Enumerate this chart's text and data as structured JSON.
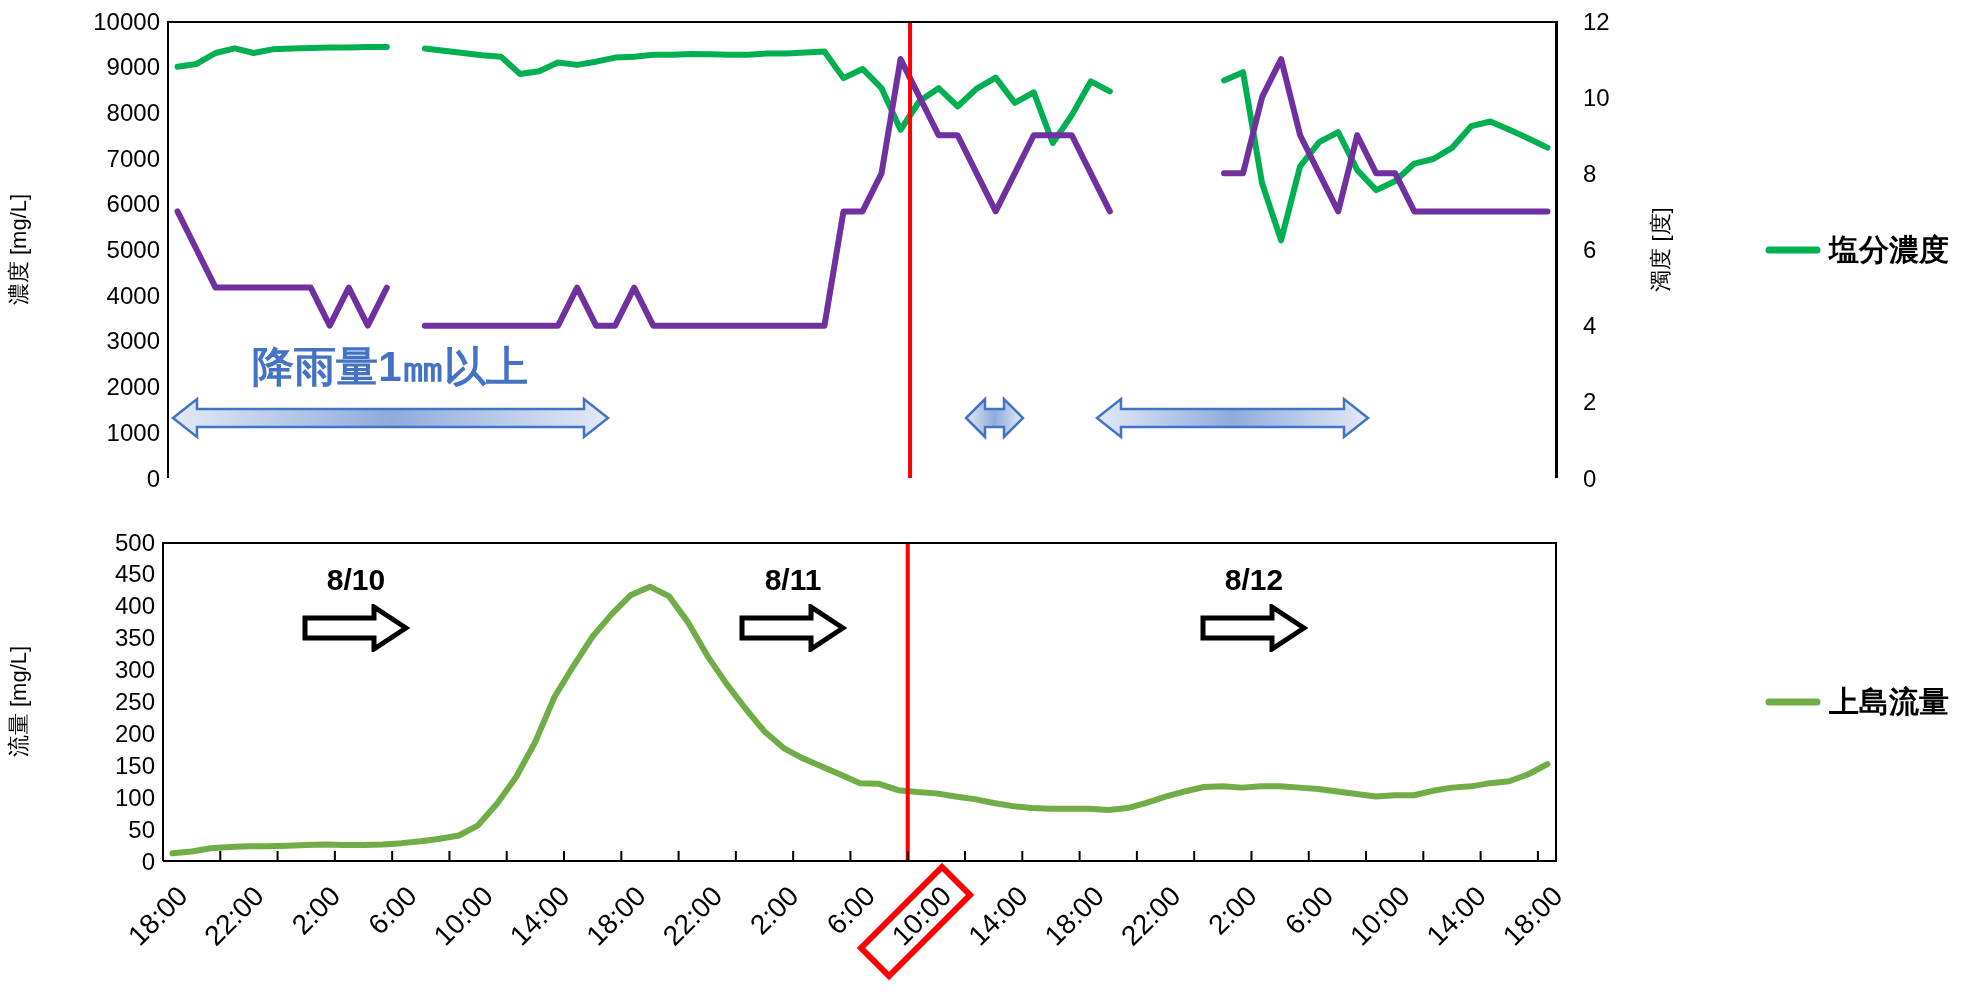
{
  "chart_data": [
    {
      "type": "line",
      "xlim": [
        "--08-09T17:30",
        "--08-12T18:30"
      ],
      "x": [
        "--08-09T18:00",
        "--08-09T19:00",
        "--08-09T20:00",
        "--08-09T21:00",
        "--08-09T22:00",
        "--08-09T23:00",
        "--08-10T00:00",
        "--08-10T01:00",
        "--08-10T02:00",
        "--08-10T03:00",
        "--08-10T04:00",
        "--08-10T05:00",
        "--08-10T06:00",
        "--08-10T07:00",
        "--08-10T08:00",
        "--08-10T09:00",
        "--08-10T10:00",
        "--08-10T11:00",
        "--08-10T12:00",
        "--08-10T13:00",
        "--08-10T14:00",
        "--08-10T15:00",
        "--08-10T16:00",
        "--08-10T17:00",
        "--08-10T18:00",
        "--08-10T19:00",
        "--08-10T20:00",
        "--08-10T21:00",
        "--08-10T22:00",
        "--08-10T23:00",
        "--08-11T00:00",
        "--08-11T01:00",
        "--08-11T02:00",
        "--08-11T03:00",
        "--08-11T04:00",
        "--08-11T05:00",
        "--08-11T06:00",
        "--08-11T07:00",
        "--08-11T08:00",
        "--08-11T09:00",
        "--08-11T10:00",
        "--08-11T11:00",
        "--08-11T12:00",
        "--08-11T13:00",
        "--08-11T14:00",
        "--08-11T15:00",
        "--08-11T16:00",
        "--08-11T17:00",
        "--08-11T18:00",
        "--08-11T19:00",
        "--08-11T20:00",
        "--08-11T21:00",
        "--08-11T22:00",
        "--08-11T23:00",
        "--08-12T00:00",
        "--08-12T01:00",
        "--08-12T02:00",
        "--08-12T03:00",
        "--08-12T04:00",
        "--08-12T05:00",
        "--08-12T06:00",
        "--08-12T07:00",
        "--08-12T08:00",
        "--08-12T09:00",
        "--08-12T10:00",
        "--08-12T11:00",
        "--08-12T12:00",
        "--08-12T13:00",
        "--08-12T14:00",
        "--08-12T15:00",
        "--08-12T16:00",
        "--08-12T17:00",
        "--08-12T18:00"
      ],
      "ylabel": "濃度 [mg/L]",
      "y2label": "濁度 [度]",
      "ylim": [
        0,
        10000
      ],
      "yticks": [
        0,
        1000,
        2000,
        3000,
        4000,
        5000,
        6000,
        7000,
        8000,
        9000,
        10000
      ],
      "y2lim": [
        0,
        12
      ],
      "y2ticks": [
        0,
        2,
        4,
        6,
        8,
        10,
        12
      ],
      "tick_labels": "y",
      "legend": "right",
      "marker": "none",
      "line_style": "solid",
      "series": [
        {
          "name": "塩分濃度",
          "color": "#00b050",
          "values": [
            9000,
            9060,
            9300,
            9400,
            9300,
            9380,
            9400,
            9410,
            9420,
            9420,
            9430,
            9430,
            null,
            9400,
            9350,
            9300,
            9250,
            9220,
            8840,
            8900,
            9090,
            9040,
            9110,
            9200,
            9220,
            9260,
            9260,
            9280,
            9270,
            9260,
            9260,
            9290,
            9290,
            9310,
            9330,
            8750,
            8950,
            8530,
            7620,
            8250,
            8530,
            8130,
            8520,
            8760,
            8210,
            8440,
            7330,
            7940,
            8680,
            8460,
            null,
            null,
            null,
            null,
            null,
            8700,
            8880,
            6450,
            5200,
            6820,
            7350,
            7570,
            6740,
            6300,
            6500,
            6880,
            6980,
            7230,
            7700,
            7800,
            7620,
            7430,
            7230
          ]
        },
        {
          "color": "#7030a0",
          "axis": "y2",
          "values": [
            7,
            6,
            5,
            5,
            5,
            5,
            5,
            5,
            4,
            5,
            4,
            5,
            null,
            4,
            4,
            4,
            4,
            4,
            4,
            4,
            4,
            5,
            4,
            4,
            5,
            4,
            4,
            4,
            4,
            4,
            4,
            4,
            4,
            4,
            4,
            7,
            7,
            8,
            11,
            10,
            9,
            9,
            8,
            7,
            8,
            9,
            9,
            9,
            8,
            7,
            null,
            null,
            null,
            null,
            null,
            8,
            8,
            10,
            11,
            9,
            8,
            7,
            9,
            8,
            8,
            7,
            7,
            7,
            7,
            7,
            7,
            7,
            7
          ]
        }
      ],
      "ref_lines": [
        {
          "axis": "x",
          "value": "--08-11T08:30",
          "color": "#ff0000"
        }
      ],
      "annotations": [
        "降雨量1㎜以上"
      ]
    },
    {
      "type": "line",
      "xlim": [
        "--08-09T17:30",
        "--08-12T18:30"
      ],
      "x": [
        "--08-09T18:00",
        "--08-09T19:00",
        "--08-09T20:00",
        "--08-09T21:00",
        "--08-09T22:00",
        "--08-09T23:00",
        "--08-10T00:00",
        "--08-10T01:00",
        "--08-10T02:00",
        "--08-10T03:00",
        "--08-10T04:00",
        "--08-10T05:00",
        "--08-10T06:00",
        "--08-10T07:00",
        "--08-10T08:00",
        "--08-10T09:00",
        "--08-10T10:00",
        "--08-10T11:00",
        "--08-10T12:00",
        "--08-10T13:00",
        "--08-10T14:00",
        "--08-10T15:00",
        "--08-10T16:00",
        "--08-10T17:00",
        "--08-10T18:00",
        "--08-10T19:00",
        "--08-10T20:00",
        "--08-10T21:00",
        "--08-10T22:00",
        "--08-10T23:00",
        "--08-11T00:00",
        "--08-11T01:00",
        "--08-11T02:00",
        "--08-11T03:00",
        "--08-11T04:00",
        "--08-11T05:00",
        "--08-11T06:00",
        "--08-11T07:00",
        "--08-11T08:00",
        "--08-11T09:00",
        "--08-11T10:00",
        "--08-11T11:00",
        "--08-11T12:00",
        "--08-11T13:00",
        "--08-11T14:00",
        "--08-11T15:00",
        "--08-11T16:00",
        "--08-11T17:00",
        "--08-11T18:00",
        "--08-11T19:00",
        "--08-11T20:00",
        "--08-11T21:00",
        "--08-11T22:00",
        "--08-11T23:00",
        "--08-12T00:00",
        "--08-12T01:00",
        "--08-12T02:00",
        "--08-12T03:00",
        "--08-12T04:00",
        "--08-12T05:00",
        "--08-12T06:00",
        "--08-12T07:00",
        "--08-12T08:00",
        "--08-12T09:00",
        "--08-12T10:00",
        "--08-12T11:00",
        "--08-12T12:00",
        "--08-12T13:00",
        "--08-12T14:00",
        "--08-12T15:00",
        "--08-12T16:00",
        "--08-12T17:00",
        "--08-12T18:00"
      ],
      "xticks": [
        {
          "value": "--08-09T18:00",
          "label": "18:00"
        },
        {
          "value": "--08-09T22:00",
          "label": "22:00"
        },
        {
          "value": "--08-10T02:00",
          "label": "2:00"
        },
        {
          "value": "--08-10T06:00",
          "label": "6:00"
        },
        {
          "value": "--08-10T10:00",
          "label": "10:00"
        },
        {
          "value": "--08-10T14:00",
          "label": "14:00"
        },
        {
          "value": "--08-10T18:00",
          "label": "18:00"
        },
        {
          "value": "--08-10T22:00",
          "label": "22:00"
        },
        {
          "value": "--08-11T02:00",
          "label": "2:00"
        },
        {
          "value": "--08-11T06:00",
          "label": "6:00"
        },
        {
          "value": "--08-11T10:00",
          "label": "10:00"
        },
        {
          "value": "--08-11T14:00",
          "label": "14:00"
        },
        {
          "value": "--08-11T18:00",
          "label": "18:00"
        },
        {
          "value": "--08-11T22:00",
          "label": "22:00"
        },
        {
          "value": "--08-12T02:00",
          "label": "2:00"
        },
        {
          "value": "--08-12T06:00",
          "label": "6:00"
        },
        {
          "value": "--08-12T10:00",
          "label": "10:00"
        },
        {
          "value": "--08-12T14:00",
          "label": "14:00"
        },
        {
          "value": "--08-12T18:00",
          "label": "18:00"
        },
        {
          "value": "--08-09T20:30",
          "label": null
        },
        {
          "value": "--08-09T23:30",
          "label": null
        },
        {
          "value": "--08-10T02:30",
          "label": null
        },
        {
          "value": "--08-10T05:30",
          "label": null
        },
        {
          "value": "--08-10T08:30",
          "label": null
        },
        {
          "value": "--08-10T11:30",
          "label": null
        },
        {
          "value": "--08-10T14:30",
          "label": null
        },
        {
          "value": "--08-10T17:30",
          "label": null
        },
        {
          "value": "--08-10T20:30",
          "label": null
        },
        {
          "value": "--08-10T23:30",
          "label": null
        },
        {
          "value": "--08-11T02:30",
          "label": null
        },
        {
          "value": "--08-11T05:30",
          "label": null
        },
        {
          "value": "--08-11T08:30",
          "label": null
        },
        {
          "value": "--08-11T11:30",
          "label": null
        },
        {
          "value": "--08-11T14:30",
          "label": null
        },
        {
          "value": "--08-11T17:30",
          "label": null
        },
        {
          "value": "--08-11T20:30",
          "label": null
        },
        {
          "value": "--08-11T23:30",
          "label": null
        },
        {
          "value": "--08-12T02:30",
          "label": null
        },
        {
          "value": "--08-12T05:30",
          "label": null
        },
        {
          "value": "--08-12T08:30",
          "label": null
        },
        {
          "value": "--08-12T11:30",
          "label": null
        },
        {
          "value": "--08-12T14:30",
          "label": null
        },
        {
          "value": "--08-12T17:30",
          "label": null
        }
      ],
      "ylabel": "流量 [mg/L]",
      "ylim": [
        0,
        500
      ],
      "yticks": [
        0,
        50,
        100,
        150,
        200,
        250,
        300,
        350,
        400,
        450,
        500
      ],
      "legend": "right",
      "marker": "none",
      "line_style": "solid",
      "series": [
        {
          "name": "上島流量",
          "color": "#70ad47",
          "values": [
            12,
            15,
            20,
            22,
            23,
            23,
            24,
            25,
            26,
            25,
            25,
            26,
            28,
            31,
            35,
            40,
            56,
            90,
            132,
            187,
            257,
            306,
            352,
            387,
            417,
            430,
            415,
            374,
            322,
            278,
            239,
            203,
            177,
            161,
            148,
            135,
            122,
            121,
            111,
            108,
            106,
            101,
            97,
            91,
            86,
            83,
            82,
            82,
            82,
            80,
            83,
            91,
            101,
            109,
            116,
            117,
            115,
            117,
            117,
            115,
            113,
            109,
            105,
            101,
            103,
            103,
            110,
            115,
            117,
            122,
            125,
            136,
            152
          ]
        }
      ],
      "ref_lines": [
        {
          "axis": "x",
          "value": "--08-11T08:30",
          "color": "#ff0000"
        }
      ],
      "annotations": [
        "8/10",
        "8/11",
        "8/12"
      ]
    }
  ]
}
